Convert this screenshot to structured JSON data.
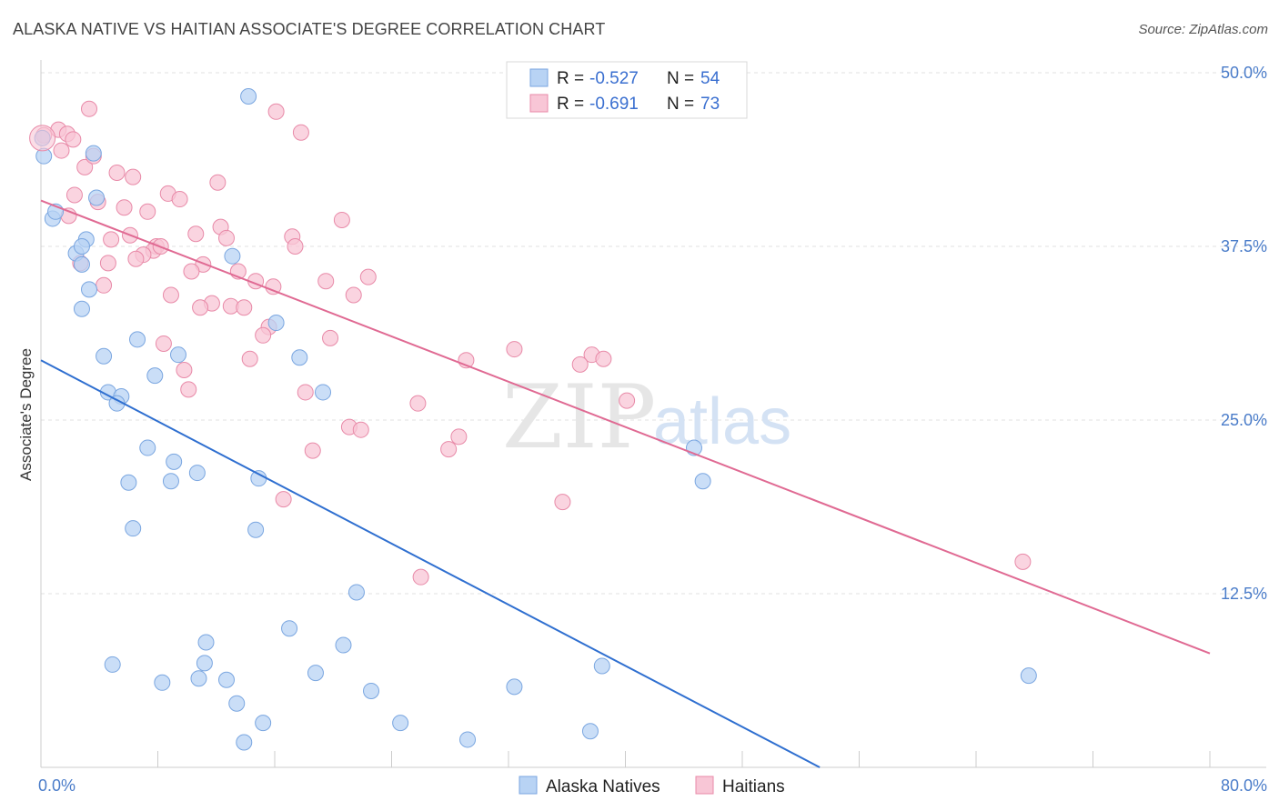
{
  "title": "ALASKA NATIVE VS HAITIAN ASSOCIATE'S DEGREE CORRELATION CHART",
  "source": "Source: ZipAtlas.com",
  "watermark": {
    "zip": "ZIP",
    "atlas": "atlas"
  },
  "colors": {
    "blue_fill": "#b8d3f4",
    "blue_stroke": "#7aa6e0",
    "blue_line": "#2f6fd0",
    "pink_fill": "#f8c6d6",
    "pink_stroke": "#e88aa8",
    "pink_line": "#e06a93",
    "grid": "#e2e2e2",
    "axis_label": "#4a7cc9"
  },
  "legend": {
    "rows": [
      {
        "r_label": "R =",
        "r_value": "-0.527",
        "n_label": "N =",
        "n_value": "54"
      },
      {
        "r_label": "R =",
        "r_value": "-0.691",
        "n_label": "N =",
        "n_value": "73"
      }
    ]
  },
  "chart_data": {
    "type": "scatter",
    "ylabel": "Associate's Degree",
    "xlim": [
      0,
      80
    ],
    "ylim": [
      0,
      50
    ],
    "x_tick_labels": [
      "0.0%",
      "80.0%"
    ],
    "y_ticks": [
      12.5,
      25.0,
      37.5,
      50.0
    ],
    "y_tick_labels": [
      "12.5%",
      "25.0%",
      "37.5%",
      "50.0%"
    ],
    "series": [
      {
        "name": "Alaska Natives",
        "trend": {
          "x": [
            0,
            53.3
          ],
          "y": [
            29.3,
            0
          ]
        },
        "points": [
          [
            0.2,
            44.0
          ],
          [
            0.8,
            39.5
          ],
          [
            1.0,
            40.0
          ],
          [
            3.6,
            44.2
          ],
          [
            3.8,
            41.0
          ],
          [
            2.4,
            37.0
          ],
          [
            2.8,
            36.2
          ],
          [
            3.1,
            38.0
          ],
          [
            2.8,
            37.5
          ],
          [
            3.3,
            34.4
          ],
          [
            2.8,
            33.0
          ],
          [
            14.2,
            48.3
          ],
          [
            13.1,
            36.8
          ],
          [
            16.1,
            32.0
          ],
          [
            6.6,
            30.8
          ],
          [
            9.4,
            29.7
          ],
          [
            4.3,
            29.6
          ],
          [
            17.7,
            29.5
          ],
          [
            7.8,
            28.2
          ],
          [
            4.6,
            27.0
          ],
          [
            5.5,
            26.7
          ],
          [
            5.2,
            26.2
          ],
          [
            19.3,
            27.0
          ],
          [
            7.3,
            23.0
          ],
          [
            9.1,
            22.0
          ],
          [
            10.7,
            21.2
          ],
          [
            6.0,
            20.5
          ],
          [
            8.9,
            20.6
          ],
          [
            14.9,
            20.8
          ],
          [
            6.3,
            17.2
          ],
          [
            14.7,
            17.1
          ],
          [
            21.6,
            12.6
          ],
          [
            17.0,
            10.0
          ],
          [
            11.3,
            9.0
          ],
          [
            20.7,
            8.8
          ],
          [
            4.9,
            7.4
          ],
          [
            11.2,
            7.5
          ],
          [
            8.3,
            6.1
          ],
          [
            10.8,
            6.4
          ],
          [
            12.7,
            6.3
          ],
          [
            18.8,
            6.8
          ],
          [
            22.6,
            5.5
          ],
          [
            32.4,
            5.8
          ],
          [
            38.4,
            7.3
          ],
          [
            13.4,
            4.6
          ],
          [
            15.2,
            3.2
          ],
          [
            24.6,
            3.2
          ],
          [
            13.9,
            1.8
          ],
          [
            29.2,
            2.0
          ],
          [
            37.6,
            2.6
          ],
          [
            44.7,
            23.0
          ],
          [
            45.3,
            20.6
          ],
          [
            67.6,
            6.6
          ],
          [
            0.1,
            45.3
          ]
        ]
      },
      {
        "name": "Haitians",
        "trend": {
          "x": [
            0,
            80
          ],
          "y": [
            40.8,
            8.2
          ]
        },
        "points": [
          [
            0.2,
            45.5
          ],
          [
            1.2,
            45.9
          ],
          [
            1.4,
            44.4
          ],
          [
            1.8,
            45.6
          ],
          [
            2.2,
            45.2
          ],
          [
            3.3,
            47.4
          ],
          [
            16.1,
            47.2
          ],
          [
            17.8,
            45.7
          ],
          [
            3.0,
            43.2
          ],
          [
            3.6,
            44.0
          ],
          [
            5.2,
            42.8
          ],
          [
            6.3,
            42.5
          ],
          [
            12.1,
            42.1
          ],
          [
            2.3,
            41.2
          ],
          [
            8.7,
            41.3
          ],
          [
            9.5,
            40.9
          ],
          [
            3.9,
            40.7
          ],
          [
            1.9,
            39.7
          ],
          [
            5.7,
            40.3
          ],
          [
            7.3,
            40.0
          ],
          [
            20.6,
            39.4
          ],
          [
            12.3,
            38.9
          ],
          [
            10.6,
            38.4
          ],
          [
            4.8,
            38.0
          ],
          [
            6.1,
            38.3
          ],
          [
            12.7,
            38.1
          ],
          [
            17.2,
            38.2
          ],
          [
            7.9,
            37.5
          ],
          [
            7.7,
            37.2
          ],
          [
            8.2,
            37.5
          ],
          [
            7.0,
            36.9
          ],
          [
            6.5,
            36.6
          ],
          [
            17.4,
            37.5
          ],
          [
            2.7,
            36.3
          ],
          [
            4.6,
            36.3
          ],
          [
            11.1,
            36.2
          ],
          [
            10.3,
            35.7
          ],
          [
            13.5,
            35.7
          ],
          [
            14.7,
            35.0
          ],
          [
            15.9,
            34.6
          ],
          [
            19.5,
            35.0
          ],
          [
            22.4,
            35.3
          ],
          [
            4.3,
            34.7
          ],
          [
            8.9,
            34.0
          ],
          [
            11.7,
            33.4
          ],
          [
            13.0,
            33.2
          ],
          [
            13.9,
            33.1
          ],
          [
            21.4,
            34.0
          ],
          [
            10.9,
            33.1
          ],
          [
            15.6,
            31.7
          ],
          [
            15.2,
            31.1
          ],
          [
            19.8,
            30.9
          ],
          [
            8.4,
            30.5
          ],
          [
            14.3,
            29.4
          ],
          [
            29.1,
            29.3
          ],
          [
            32.4,
            30.1
          ],
          [
            37.7,
            29.7
          ],
          [
            38.5,
            29.4
          ],
          [
            36.9,
            29.0
          ],
          [
            9.8,
            28.6
          ],
          [
            10.1,
            27.2
          ],
          [
            18.1,
            27.0
          ],
          [
            25.8,
            26.2
          ],
          [
            40.1,
            26.4
          ],
          [
            21.1,
            24.5
          ],
          [
            21.9,
            24.3
          ],
          [
            28.6,
            23.8
          ],
          [
            27.9,
            22.9
          ],
          [
            18.6,
            22.8
          ],
          [
            16.6,
            19.3
          ],
          [
            35.7,
            19.1
          ],
          [
            26.0,
            13.7
          ],
          [
            67.2,
            14.8
          ]
        ]
      }
    ]
  }
}
